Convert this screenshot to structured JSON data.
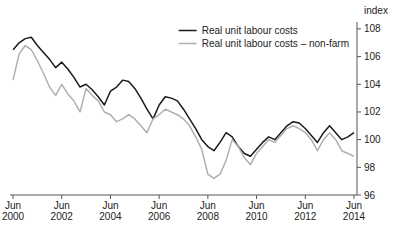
{
  "chart_data": {
    "type": "line",
    "y_label": "index",
    "categories": [
      "Jun\n2000",
      null,
      null,
      null,
      null,
      null,
      null,
      null,
      "Jun\n2002",
      null,
      null,
      null,
      null,
      null,
      null,
      null,
      "Jun\n2004",
      null,
      null,
      null,
      null,
      null,
      null,
      null,
      "Jun\n2006",
      null,
      null,
      null,
      null,
      null,
      null,
      null,
      "Jun\n2008",
      null,
      null,
      null,
      null,
      null,
      null,
      null,
      "Jun\n2010",
      null,
      null,
      null,
      null,
      null,
      null,
      null,
      "Jun\n2012",
      null,
      null,
      null,
      null,
      null,
      null,
      null,
      "Jun\n2014"
    ],
    "series": [
      {
        "name": "Real unit labour costs",
        "color": "#1a1a1a",
        "values": [
          106.5,
          107.0,
          107.3,
          107.4,
          106.8,
          106.3,
          105.8,
          105.2,
          105.6,
          105.1,
          104.5,
          103.8,
          104.0,
          103.6,
          103.1,
          102.5,
          103.5,
          103.8,
          104.3,
          104.2,
          103.7,
          103.0,
          102.2,
          101.5,
          102.5,
          103.1,
          103.0,
          102.8,
          102.2,
          101.5,
          100.8,
          100.0,
          99.5,
          99.2,
          99.8,
          100.5,
          100.2,
          99.5,
          99.0,
          98.8,
          99.3,
          99.8,
          100.2,
          100.0,
          100.5,
          101.0,
          101.3,
          101.2,
          100.8,
          100.3,
          99.8,
          100.5,
          101.0,
          100.5,
          100.0,
          100.2,
          100.5
        ]
      },
      {
        "name": "Real unit labour costs – non-farm",
        "color": "#b0b0b0",
        "values": [
          104.3,
          106.2,
          106.8,
          106.5,
          105.7,
          104.8,
          103.8,
          103.2,
          104.0,
          103.3,
          102.8,
          102.0,
          103.7,
          103.2,
          102.8,
          102.0,
          101.8,
          101.3,
          101.5,
          101.8,
          101.5,
          101.0,
          100.5,
          101.5,
          101.8,
          102.2,
          102.0,
          101.8,
          101.5,
          101.0,
          100.2,
          99.3,
          97.5,
          97.2,
          97.5,
          98.5,
          100.0,
          99.5,
          98.7,
          98.2,
          99.0,
          99.5,
          100.0,
          99.8,
          100.3,
          100.8,
          101.0,
          100.8,
          100.5,
          100.0,
          99.2,
          100.0,
          100.5,
          100.0,
          99.2,
          99.0,
          98.8
        ]
      }
    ],
    "ylim": [
      96,
      108.5
    ],
    "yticks": [
      96,
      98,
      100,
      102,
      104,
      106,
      108
    ],
    "grid": false,
    "legend": "upper right"
  }
}
